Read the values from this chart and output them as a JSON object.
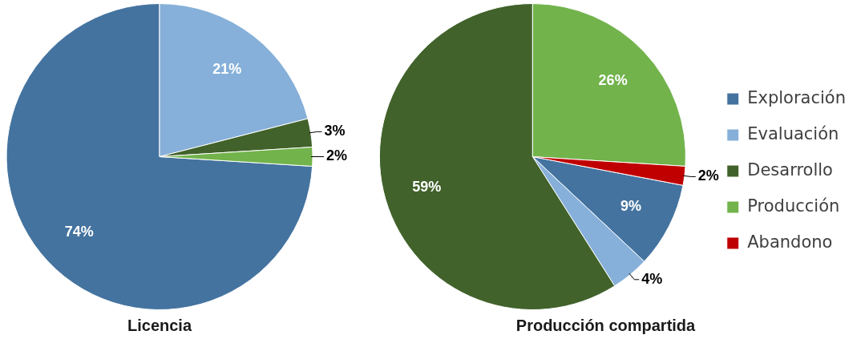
{
  "chart_data": [
    {
      "type": "pie",
      "title": "Licencia",
      "categories": [
        null,
        null,
        null,
        null
      ],
      "values": [
        74,
        21,
        3,
        2
      ],
      "colors": [
        "#44739f",
        "#86b0d9",
        "#41622b",
        "#72b34c"
      ],
      "value_labels": [
        "74%",
        "21%",
        "3%",
        "2%"
      ],
      "legend": false
    },
    {
      "type": "pie",
      "title": "Producción compartida",
      "categories": [
        "Exploración",
        "Evaluación",
        "Desarrollo",
        "Producción",
        "Abandono"
      ],
      "values": [
        9,
        4,
        59,
        26,
        2
      ],
      "colors": [
        "#44739f",
        "#86b0d9",
        "#41622b",
        "#72b34c",
        "#c00000"
      ],
      "value_labels": [
        "9%",
        "4%",
        "59%",
        "26%",
        "2%"
      ],
      "legend": "right"
    }
  ]
}
